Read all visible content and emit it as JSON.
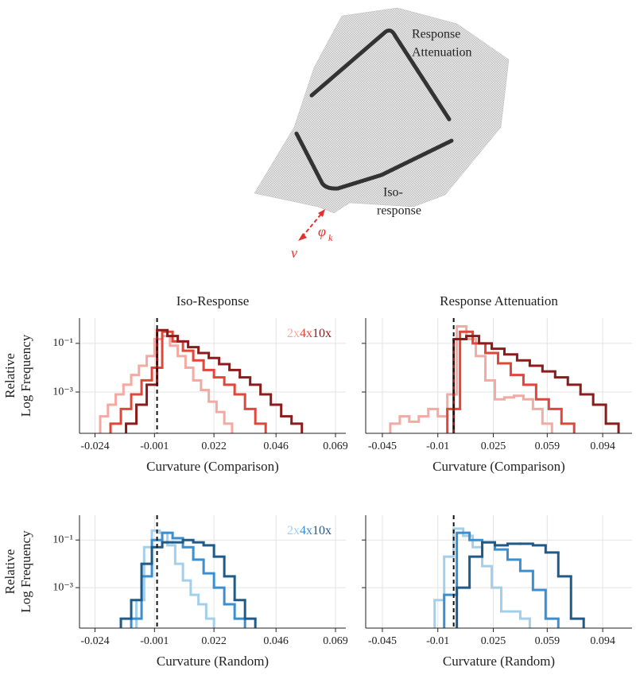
{
  "diagram": {
    "response_attenuation": [
      "Response",
      "Attenuation"
    ],
    "iso_response": [
      "Iso-",
      "response"
    ],
    "phi": "φ",
    "phi_sub": "k",
    "nu": "ν"
  },
  "chart_data": [
    {
      "type": "histogram",
      "title": "Iso-Response",
      "xlabel": "Curvature (Comparison)",
      "ylabel": [
        "Relative",
        "Log Frequency"
      ],
      "log_y": true,
      "grid": true,
      "legend": "upper right",
      "vline": 0,
      "xlim": [
        -0.03,
        0.073
      ],
      "xticks": [
        -0.024,
        -0.001,
        0.022,
        0.046,
        0.069
      ],
      "ylim": [
        2e-05,
        1.1
      ],
      "yticks": [
        {
          "value": 0.1,
          "label": "10⁻¹"
        },
        {
          "value": 0.001,
          "label": "10⁻³"
        }
      ],
      "series": [
        {
          "name": "2x",
          "color": "#f4a9a3",
          "bins": [
            -0.022,
            -0.019,
            -0.016,
            -0.013,
            -0.01,
            -0.007,
            -0.004,
            -0.001,
            0.002,
            0.005,
            0.008,
            0.011,
            0.014,
            0.017,
            0.02,
            0.023,
            0.026,
            0.029
          ],
          "values": [
            0.0001,
            0.0003,
            0.0008,
            0.002,
            0.005,
            0.012,
            0.03,
            0.15,
            0.2,
            0.08,
            0.03,
            0.01,
            0.003,
            0.0012,
            0.0004,
            0.00015,
            5e-05
          ]
        },
        {
          "name": "4x",
          "color": "#e0473a",
          "bins": [
            -0.018,
            -0.014,
            -0.01,
            -0.006,
            -0.002,
            0.002,
            0.006,
            0.01,
            0.014,
            0.018,
            0.022,
            0.026,
            0.03,
            0.034,
            0.038,
            0.042
          ],
          "values": [
            5e-05,
            0.0002,
            0.0008,
            0.003,
            0.01,
            0.3,
            0.12,
            0.05,
            0.02,
            0.008,
            0.004,
            0.002,
            0.0008,
            0.0002,
            5e-05
          ]
        },
        {
          "name": "10x",
          "color": "#8c1c1c",
          "bins": [
            -0.012,
            -0.008,
            -0.004,
            0,
            0.004,
            0.008,
            0.012,
            0.016,
            0.02,
            0.024,
            0.028,
            0.032,
            0.036,
            0.04,
            0.044,
            0.048,
            0.052,
            0.056
          ],
          "values": [
            5e-05,
            0.0003,
            0.002,
            0.35,
            0.2,
            0.12,
            0.07,
            0.04,
            0.025,
            0.014,
            0.008,
            0.004,
            0.002,
            0.0008,
            0.0003,
            0.0001,
            5e-05
          ]
        }
      ]
    },
    {
      "type": "histogram",
      "title": "Response Attenuation",
      "xlabel": "Curvature (Comparison)",
      "log_y": true,
      "grid": true,
      "legend": false,
      "vline": 0,
      "xlim": [
        -0.0555,
        0.1125
      ],
      "xticks": [
        -0.045,
        -0.01,
        0.025,
        0.059,
        0.094
      ],
      "ylim": [
        2e-05,
        1.1
      ],
      "yticks": [
        0.1,
        0.001
      ],
      "series": [
        {
          "name": "2x",
          "color": "#f4a9a3",
          "bins": [
            -0.04,
            -0.034,
            -0.028,
            -0.022,
            -0.016,
            -0.01,
            -0.004,
            0.002,
            0.008,
            0.014,
            0.02,
            0.026,
            0.032,
            0.038,
            0.044,
            0.05,
            0.056,
            0.062
          ],
          "values": [
            5e-05,
            0.0001,
            6e-05,
            0.0001,
            0.0002,
            0.0001,
            0.0008,
            0.5,
            0.15,
            0.03,
            0.003,
            0.0005,
            0.0006,
            0.0007,
            0.0005,
            0.0002,
            5e-05
          ]
        },
        {
          "name": "4x",
          "color": "#e0473a",
          "bins": [
            -0.004,
            0.004,
            0.012,
            0.02,
            0.028,
            0.036,
            0.044,
            0.052,
            0.06,
            0.068,
            0.076
          ],
          "values": [
            0.0002,
            0.3,
            0.1,
            0.04,
            0.015,
            0.005,
            0.002,
            0.0005,
            0.0002,
            5e-05
          ]
        },
        {
          "name": "10x",
          "color": "#8c1c1c",
          "bins": [
            0,
            0.008,
            0.016,
            0.024,
            0.032,
            0.04,
            0.048,
            0.056,
            0.064,
            0.072,
            0.08,
            0.088,
            0.096,
            0.104
          ],
          "values": [
            0.15,
            0.2,
            0.1,
            0.06,
            0.035,
            0.02,
            0.012,
            0.007,
            0.004,
            0.002,
            0.0008,
            0.0003,
            5e-05
          ]
        }
      ]
    },
    {
      "type": "histogram",
      "xlabel": "Curvature (Random)",
      "ylabel": [
        "Relative",
        "Log Frequency"
      ],
      "log_y": true,
      "grid": true,
      "legend": "upper right",
      "vline": 0,
      "xlim": [
        -0.03,
        0.073
      ],
      "xticks": [
        -0.024,
        -0.001,
        0.022,
        0.046,
        0.069
      ],
      "ylim": [
        2e-05,
        1.1
      ],
      "yticks": [
        {
          "value": 0.1,
          "label": "10⁻¹"
        },
        {
          "value": 0.001,
          "label": "10⁻³"
        }
      ],
      "series": [
        {
          "name": "2x",
          "color": "#a3cfea",
          "bins": [
            -0.008,
            -0.005,
            -0.002,
            0.001,
            0.004,
            0.007,
            0.01,
            0.013,
            0.016,
            0.019,
            0.022
          ],
          "values": [
            0.0003,
            0.05,
            0.25,
            0.2,
            0.06,
            0.01,
            0.002,
            0.0005,
            0.0002,
            5e-05
          ]
        },
        {
          "name": "4x",
          "color": "#3a8fd1",
          "bins": [
            -0.01,
            -0.006,
            -0.002,
            0.002,
            0.006,
            0.01,
            0.014,
            0.018,
            0.022,
            0.026,
            0.03,
            0.034
          ],
          "values": [
            5e-05,
            0.003,
            0.1,
            0.2,
            0.12,
            0.05,
            0.015,
            0.004,
            0.001,
            0.0002,
            5e-05
          ]
        },
        {
          "name": "10x",
          "color": "#1f5a88",
          "bins": [
            -0.014,
            -0.01,
            -0.006,
            -0.002,
            0.002,
            0.006,
            0.01,
            0.014,
            0.018,
            0.022,
            0.026,
            0.03,
            0.034,
            0.038
          ],
          "values": [
            5e-05,
            0.0003,
            0.01,
            0.05,
            0.08,
            0.08,
            0.1,
            0.08,
            0.06,
            0.02,
            0.003,
            0.0003,
            5e-05
          ]
        }
      ]
    },
    {
      "type": "histogram",
      "xlabel": "Curvature (Random)",
      "log_y": true,
      "grid": true,
      "legend": false,
      "vline": 0,
      "xlim": [
        -0.0555,
        0.1125
      ],
      "xticks": [
        -0.045,
        -0.01,
        0.025,
        0.059,
        0.094
      ],
      "ylim": [
        2e-05,
        1.1
      ],
      "yticks": [
        0.1,
        0.001
      ],
      "series": [
        {
          "name": "2x",
          "color": "#a3cfea",
          "bins": [
            -0.012,
            -0.006,
            0,
            0.006,
            0.012,
            0.018,
            0.024,
            0.03,
            0.036,
            0.042,
            0.048
          ],
          "values": [
            0.0003,
            0.02,
            0.3,
            0.15,
            0.05,
            0.008,
            0.001,
            0.0001,
            0.0001,
            5e-05
          ]
        },
        {
          "name": "4x",
          "color": "#3a8fd1",
          "bins": [
            -0.006,
            0.002,
            0.01,
            0.018,
            0.026,
            0.034,
            0.042,
            0.05,
            0.058,
            0.066
          ],
          "values": [
            0.0005,
            0.2,
            0.1,
            0.08,
            0.04,
            0.015,
            0.005,
            0.0008,
            5e-05
          ]
        },
        {
          "name": "10x",
          "color": "#1f5a88",
          "bins": [
            0.002,
            0.01,
            0.018,
            0.026,
            0.034,
            0.042,
            0.05,
            0.058,
            0.066,
            0.074,
            0.082
          ],
          "values": [
            0.001,
            0.02,
            0.08,
            0.06,
            0.07,
            0.07,
            0.06,
            0.03,
            0.003,
            5e-05
          ]
        }
      ]
    }
  ]
}
